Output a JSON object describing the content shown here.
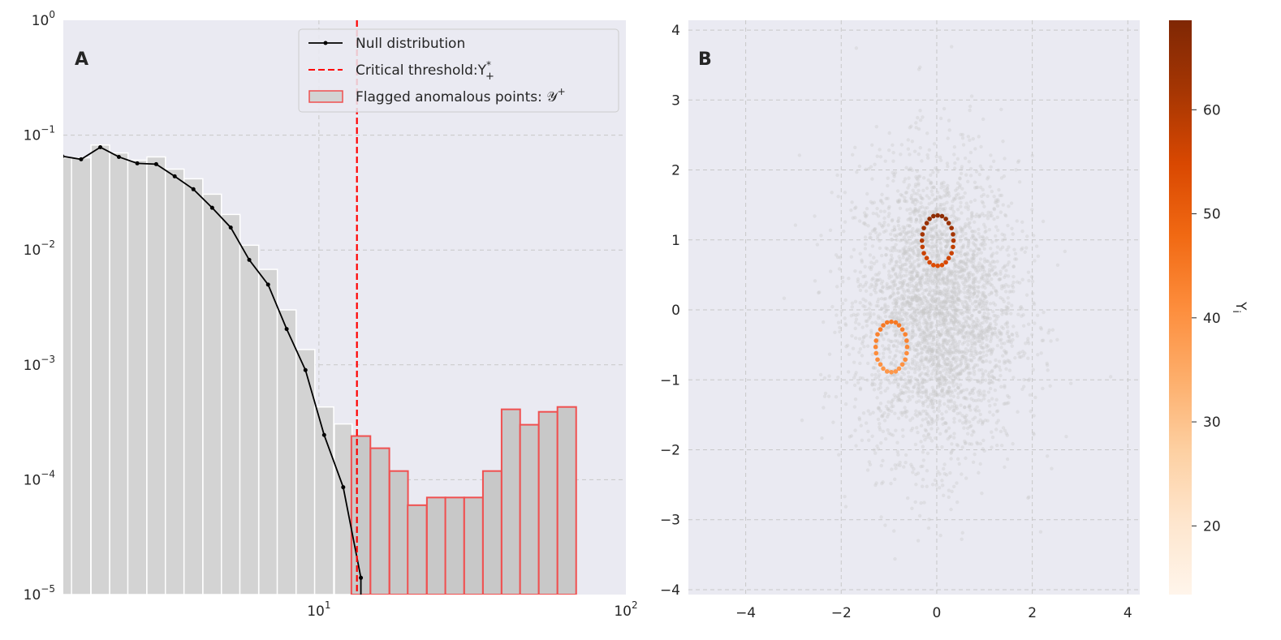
{
  "chart_data": [
    {
      "panel_label": "A",
      "type": "bar",
      "x_scale": "log",
      "y_scale": "log",
      "xlim": [
        1.47,
        100
      ],
      "ylim": [
        1e-05,
        1
      ],
      "grid": true,
      "legend_placement": "top-right",
      "x_ticks": [
        {
          "base": "10",
          "exp": "1",
          "value": 10
        },
        {
          "base": "10",
          "exp": "2",
          "value": 100
        }
      ],
      "y_ticks": [
        {
          "base": "10",
          "exp": "0",
          "value": 1
        },
        {
          "base": "10",
          "exp": "−1",
          "value": 0.1
        },
        {
          "base": "10",
          "exp": "−2",
          "value": 0.01
        },
        {
          "base": "10",
          "exp": "−3",
          "value": 0.001
        },
        {
          "base": "10",
          "exp": "−4",
          "value": 0.0001
        },
        {
          "base": "10",
          "exp": "−5",
          "value": 1e-05
        }
      ],
      "histogram": {
        "bin_centers": [
          1.46,
          1.68,
          1.94,
          2.23,
          2.56,
          2.95,
          3.39,
          3.9,
          4.49,
          5.16,
          5.93,
          6.83,
          7.85,
          9.04,
          10.4,
          12.0,
          13.7,
          15.8,
          18.2,
          20.9,
          24.1,
          27.7,
          31.9,
          36.7,
          42.2,
          48.5,
          55.8,
          64.2
        ],
        "values": [
          0.0635,
          0.0635,
          0.082,
          0.07,
          0.0605,
          0.0646,
          0.0506,
          0.0417,
          0.0306,
          0.0204,
          0.011,
          0.00678,
          0.00301,
          0.00136,
          0.00043,
          0.000306,
          0.00024,
          0.000188,
          0.000119,
          6e-05,
          7e-05,
          7e-05,
          7e-05,
          0.000119,
          0.00041,
          0.000301,
          0.00039,
          0.00043
        ],
        "flagged": [
          false,
          false,
          false,
          false,
          false,
          false,
          false,
          false,
          false,
          false,
          false,
          false,
          false,
          false,
          false,
          false,
          true,
          true,
          true,
          true,
          true,
          true,
          true,
          true,
          true,
          true,
          true,
          true
        ],
        "fill_color": "#d3d3d3",
        "flagged_fill_color": "#c8c8c8",
        "flagged_edge_color": "#f05050"
      },
      "null_line": {
        "x": [
          1.46,
          1.68,
          1.94,
          2.23,
          2.56,
          2.95,
          3.39,
          3.9,
          4.49,
          5.16,
          5.93,
          6.83,
          7.85,
          9.04,
          10.4,
          12.0,
          13.7
        ],
        "y": [
          0.0655,
          0.0616,
          0.0785,
          0.0646,
          0.0568,
          0.0559,
          0.0438,
          0.0338,
          0.0233,
          0.0157,
          0.0082,
          0.005,
          0.00205,
          0.0009,
          0.000245,
          8.6e-05,
          1.4e-05
        ],
        "color": "#000000"
      },
      "threshold": {
        "x": 13.3,
        "color": "#ff0000"
      },
      "legend": [
        {
          "label": "Null distribution"
        },
        {
          "label": "Critical threshold:Y",
          "sup": "*",
          "sub": "+"
        },
        {
          "label": "Flagged anomalous points: 𝒴",
          "sup": "+"
        }
      ]
    },
    {
      "panel_label": "B",
      "type": "scatter",
      "xlim": [
        -5.2,
        4.25
      ],
      "ylim": [
        -4.07,
        4.14
      ],
      "grid": true,
      "x_ticks": [
        "−4",
        "−2",
        "0",
        "2",
        "4"
      ],
      "x_tick_values": [
        -4,
        -2,
        0,
        2,
        4
      ],
      "y_ticks": [
        "−4",
        "−3",
        "−2",
        "−1",
        "0",
        "1",
        "2",
        "3",
        "4"
      ],
      "y_tick_values": [
        -4,
        -3,
        -2,
        -1,
        0,
        1,
        2,
        3,
        4
      ],
      "background_color": "#c8c8c8",
      "colorbar": {
        "label": "Y",
        "label_sub": "i",
        "colormap": "Oranges",
        "range": [
          13.4,
          68.6
        ],
        "ticks": [
          "20",
          "30",
          "40",
          "50",
          "60"
        ],
        "tick_values": [
          20,
          30,
          40,
          50,
          60
        ],
        "stops": [
          "#fff5eb",
          "#fee6ce",
          "#fdd0a2",
          "#fdae6b",
          "#fd8d3c",
          "#f16913",
          "#d94801",
          "#a63603",
          "#7f2704"
        ]
      },
      "colored_points": [
        [
          0.35,
          0.99,
          60
        ],
        [
          0.34,
          1.08,
          62
        ],
        [
          0.31,
          1.17,
          63
        ],
        [
          0.25,
          1.24,
          64
        ],
        [
          0.19,
          1.3,
          65
        ],
        [
          0.11,
          1.34,
          66
        ],
        [
          0.02,
          1.35,
          66
        ],
        [
          -0.07,
          1.34,
          66
        ],
        [
          -0.15,
          1.3,
          65
        ],
        [
          -0.21,
          1.24,
          64
        ],
        [
          -0.27,
          1.17,
          63
        ],
        [
          -0.3,
          1.08,
          62
        ],
        [
          -0.31,
          0.99,
          60
        ],
        [
          -0.3,
          0.9,
          58
        ],
        [
          -0.27,
          0.81,
          57
        ],
        [
          -0.21,
          0.74,
          56
        ],
        [
          -0.15,
          0.68,
          55
        ],
        [
          -0.07,
          0.64,
          54
        ],
        [
          0.02,
          0.63,
          54
        ],
        [
          0.11,
          0.64,
          54
        ],
        [
          0.19,
          0.68,
          55
        ],
        [
          0.25,
          0.74,
          56
        ],
        [
          0.31,
          0.81,
          57
        ],
        [
          0.34,
          0.9,
          58
        ],
        [
          -0.62,
          -0.53,
          42
        ],
        [
          -0.63,
          -0.44,
          43
        ],
        [
          -0.66,
          -0.35,
          43
        ],
        [
          -0.72,
          -0.28,
          44
        ],
        [
          -0.79,
          -0.22,
          45
        ],
        [
          -0.86,
          -0.18,
          45
        ],
        [
          -0.95,
          -0.17,
          45
        ],
        [
          -1.04,
          -0.18,
          45
        ],
        [
          -1.12,
          -0.22,
          45
        ],
        [
          -1.18,
          -0.28,
          44
        ],
        [
          -1.24,
          -0.35,
          43
        ],
        [
          -1.27,
          -0.44,
          43
        ],
        [
          -1.28,
          -0.53,
          42
        ],
        [
          -1.27,
          -0.62,
          41
        ],
        [
          -1.24,
          -0.71,
          41
        ],
        [
          -1.18,
          -0.78,
          40
        ],
        [
          -1.12,
          -0.84,
          39
        ],
        [
          -1.04,
          -0.88,
          39
        ],
        [
          -0.95,
          -0.89,
          39
        ],
        [
          -0.86,
          -0.88,
          39
        ],
        [
          -0.79,
          -0.84,
          39
        ],
        [
          -0.72,
          -0.78,
          40
        ],
        [
          -0.66,
          -0.71,
          41
        ],
        [
          -0.63,
          -0.62,
          41
        ]
      ]
    }
  ]
}
